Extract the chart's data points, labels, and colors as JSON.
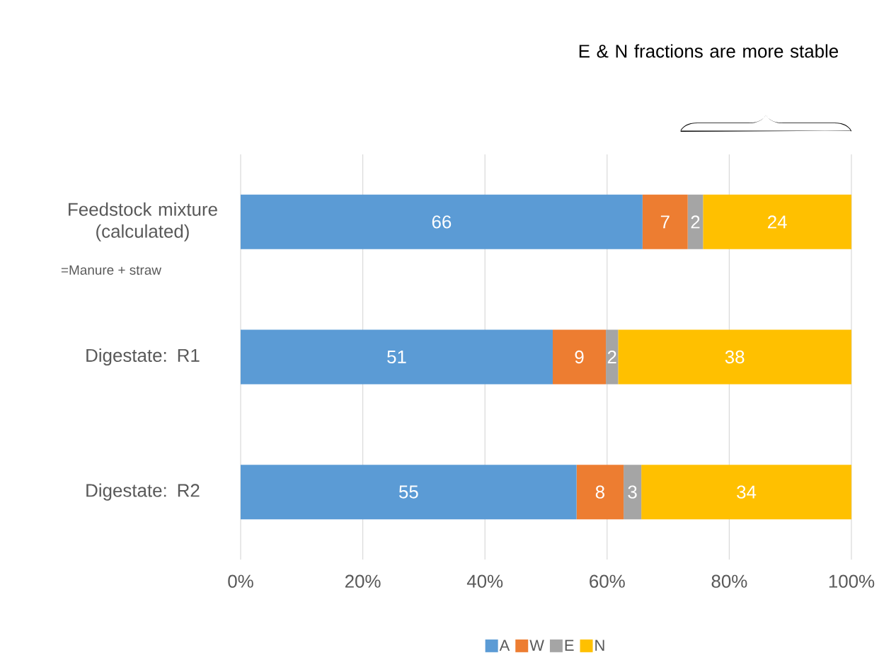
{
  "chart_data": {
    "type": "bar",
    "orientation": "horizontal",
    "stacked": true,
    "categories": [
      "Feedstock mixture (calculated)",
      "Digestate: R1",
      "Digestate: R2"
    ],
    "series": [
      {
        "name": "A",
        "color": "#5b9bd5",
        "values": [
          65.8,
          51.1,
          55.0
        ],
        "value_labels": [
          "66",
          "51",
          "55"
        ]
      },
      {
        "name": "W",
        "color": "#ed7d31",
        "values": [
          7.4,
          8.7,
          7.7
        ],
        "value_labels": [
          "7",
          "9",
          "8"
        ]
      },
      {
        "name": "E",
        "color": "#a5a5a5",
        "values": [
          2.5,
          2.0,
          2.9
        ],
        "value_labels": [
          "2",
          "2",
          "3"
        ]
      },
      {
        "name": "N",
        "color": "#ffc000",
        "values": [
          24.3,
          38.2,
          34.4
        ],
        "value_labels": [
          "24",
          "38",
          "34"
        ]
      }
    ],
    "xlim": [
      0,
      100
    ],
    "xticks": [
      {
        "value": 0,
        "label": "0%"
      },
      {
        "value": 20,
        "label": "20%"
      },
      {
        "value": 40,
        "label": "40%"
      },
      {
        "value": 60,
        "label": "60%"
      },
      {
        "value": 80,
        "label": "80%"
      },
      {
        "value": 100,
        "label": "100%"
      }
    ],
    "grid": "x",
    "legend": "bottom",
    "annotations": [
      "E & N fractions are more stable",
      "=Manure + straw"
    ]
  }
}
